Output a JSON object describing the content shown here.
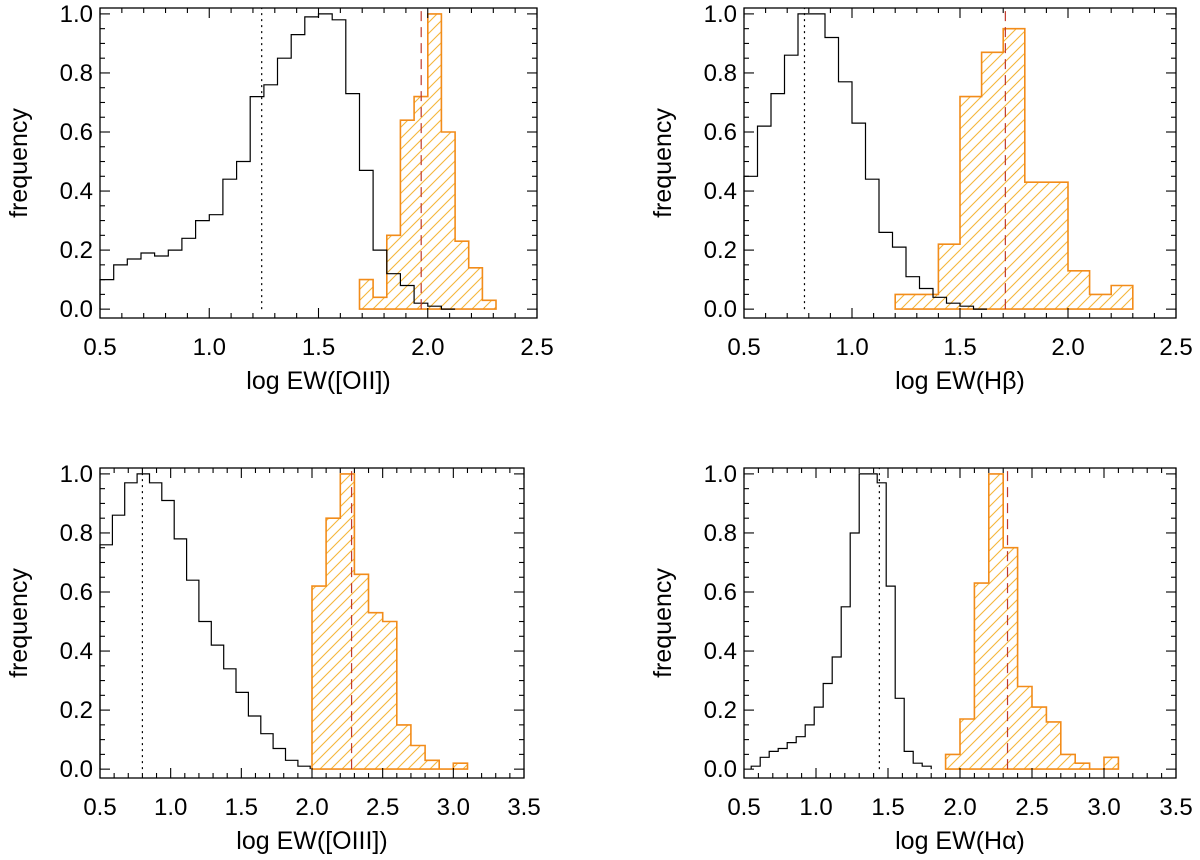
{
  "colors": {
    "reference_hist": "#000000",
    "sample_hist": "#f28c1a",
    "hatch": "#f5b63a",
    "sample_median": "#c0392b"
  },
  "chart_data": [
    {
      "type": "bar",
      "id": "oii",
      "xlabel": "log EW([OII])",
      "ylabel": "frequency",
      "xlim": [
        0.5,
        2.5
      ],
      "ylim": [
        -0.03,
        1.02
      ],
      "xticks": [
        0.5,
        1.0,
        1.5,
        2.0,
        2.5
      ],
      "xtick_labels": [
        "0.5",
        "1.0",
        "1.5",
        "2.0",
        "2.5"
      ],
      "yticks": [
        0.0,
        0.2,
        0.4,
        0.6,
        0.8,
        1.0
      ],
      "ytick_labels": [
        "0.0",
        "0.2",
        "0.4",
        "0.6",
        "0.8",
        "1.0"
      ],
      "series": [
        {
          "name": "reference (black)",
          "bin_start": 0.5,
          "bin_width": 0.0625,
          "values": [
            0.1,
            0.15,
            0.17,
            0.19,
            0.18,
            0.2,
            0.24,
            0.3,
            0.32,
            0.44,
            0.5,
            0.72,
            0.76,
            0.85,
            0.93,
            0.99,
            1.0,
            0.98,
            0.73,
            0.47,
            0.2,
            0.12,
            0.08,
            0.02,
            0.01,
            0.0
          ]
        },
        {
          "name": "sample (orange hatched)",
          "bin_start": 1.6875,
          "bin_width": 0.0625,
          "values": [
            0.1,
            0.04,
            0.25,
            0.64,
            0.72,
            1.0,
            0.6,
            0.23,
            0.14,
            0.03
          ]
        }
      ],
      "medians": {
        "reference": 1.24,
        "sample": 1.97
      }
    },
    {
      "type": "bar",
      "id": "hbeta",
      "xlabel": "log EW(Hβ)",
      "ylabel": "frequency",
      "xlim": [
        0.5,
        2.5
      ],
      "ylim": [
        -0.03,
        1.02
      ],
      "xticks": [
        0.5,
        1.0,
        1.5,
        2.0,
        2.5
      ],
      "xtick_labels": [
        "0.5",
        "1.0",
        "1.5",
        "2.0",
        "2.5"
      ],
      "yticks": [
        0.0,
        0.2,
        0.4,
        0.6,
        0.8,
        1.0
      ],
      "ytick_labels": [
        "0.0",
        "0.2",
        "0.4",
        "0.6",
        "0.8",
        "1.0"
      ],
      "series": [
        {
          "name": "reference (black)",
          "bin_start": 0.5,
          "bin_width": 0.0625,
          "values": [
            0.45,
            0.62,
            0.73,
            0.86,
            1.0,
            1.0,
            0.92,
            0.77,
            0.63,
            0.44,
            0.26,
            0.21,
            0.11,
            0.07,
            0.04,
            0.02,
            0.01,
            0.0
          ]
        },
        {
          "name": "sample (orange hatched)",
          "bin_start": 1.2,
          "bin_width": 0.1,
          "values": [
            0.05,
            0.05,
            0.22,
            0.72,
            0.87,
            0.95,
            0.43,
            0.43,
            0.13,
            0.05,
            0.08
          ]
        }
      ],
      "medians": {
        "reference": 0.78,
        "sample": 1.71
      }
    },
    {
      "type": "bar",
      "id": "oiii",
      "xlabel": "log EW([OIII])",
      "ylabel": "frequency",
      "xlim": [
        0.5,
        3.5
      ],
      "ylim": [
        -0.03,
        1.02
      ],
      "xticks": [
        0.5,
        1.0,
        1.5,
        2.0,
        2.5,
        3.0,
        3.5
      ],
      "xtick_labels": [
        "0.5",
        "1.0",
        "1.5",
        "2.0",
        "2.5",
        "3.0",
        "3.5"
      ],
      "yticks": [
        0.0,
        0.2,
        0.4,
        0.6,
        0.8,
        1.0
      ],
      "ytick_labels": [
        "0.0",
        "0.2",
        "0.4",
        "0.6",
        "0.8",
        "1.0"
      ],
      "series": [
        {
          "name": "reference (black)",
          "bin_start": 0.5,
          "bin_width": 0.0875,
          "values": [
            0.76,
            0.86,
            0.97,
            1.0,
            0.97,
            0.91,
            0.78,
            0.64,
            0.5,
            0.42,
            0.34,
            0.26,
            0.18,
            0.12,
            0.07,
            0.03,
            0.01
          ]
        },
        {
          "name": "sample (orange hatched)",
          "bin_start": 2.0,
          "bin_width": 0.1,
          "values": [
            0.62,
            0.85,
            1.0,
            0.66,
            0.53,
            0.5,
            0.15,
            0.08,
            0.03,
            0.0,
            0.02
          ]
        }
      ],
      "medians": {
        "reference": 0.8,
        "sample": 2.28
      }
    },
    {
      "type": "bar",
      "id": "halpha",
      "xlabel": "log EW(Hα)",
      "ylabel": "frequency",
      "xlim": [
        0.5,
        3.5
      ],
      "ylim": [
        -0.03,
        1.02
      ],
      "xticks": [
        0.5,
        1.0,
        1.5,
        2.0,
        2.5,
        3.0,
        3.5
      ],
      "xtick_labels": [
        "0.5",
        "1.0",
        "1.5",
        "2.0",
        "2.5",
        "3.0",
        "3.5"
      ],
      "yticks": [
        0.0,
        0.2,
        0.4,
        0.6,
        0.8,
        1.0
      ],
      "ytick_labels": [
        "0.0",
        "0.2",
        "0.4",
        "0.6",
        "0.8",
        "1.0"
      ],
      "series": [
        {
          "name": "reference (black)",
          "bin_start": 0.55,
          "bin_width": 0.0625,
          "values": [
            0.01,
            0.04,
            0.06,
            0.07,
            0.09,
            0.11,
            0.15,
            0.21,
            0.29,
            0.38,
            0.55,
            0.8,
            1.0,
            1.0,
            0.97,
            0.62,
            0.24,
            0.06,
            0.02,
            0.01
          ]
        },
        {
          "name": "sample (orange hatched)",
          "bin_start": 1.9,
          "bin_width": 0.1,
          "values": [
            0.05,
            0.17,
            0.63,
            1.0,
            0.75,
            0.28,
            0.21,
            0.16,
            0.05,
            0.02,
            0.0,
            0.04
          ]
        }
      ],
      "medians": {
        "reference": 1.44,
        "sample": 2.33
      }
    }
  ]
}
